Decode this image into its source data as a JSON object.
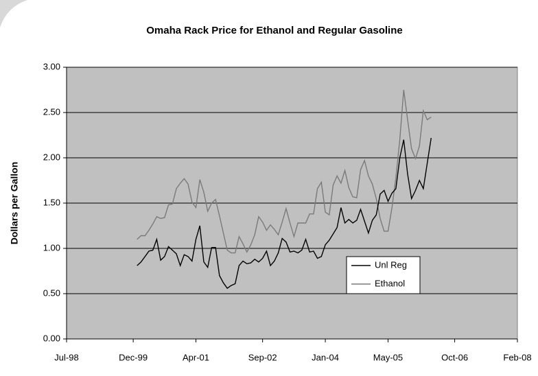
{
  "chart_data": {
    "type": "line",
    "title": "Omaha Rack Price for Ethanol and Regular Gasoline",
    "y_label": "Dollars per Gallon",
    "x": [
      "2000-01",
      "2000-02",
      "2000-03",
      "2000-04",
      "2000-05",
      "2000-06",
      "2000-07",
      "2000-08",
      "2000-09",
      "2000-10",
      "2000-11",
      "2000-12",
      "2001-01",
      "2001-02",
      "2001-03",
      "2001-04",
      "2001-05",
      "2001-06",
      "2001-07",
      "2001-08",
      "2001-09",
      "2001-10",
      "2001-11",
      "2001-12",
      "2002-01",
      "2002-02",
      "2002-03",
      "2002-04",
      "2002-05",
      "2002-06",
      "2002-07",
      "2002-08",
      "2002-09",
      "2002-10",
      "2002-11",
      "2002-12",
      "2003-01",
      "2003-02",
      "2003-03",
      "2003-04",
      "2003-05",
      "2003-06",
      "2003-07",
      "2003-08",
      "2003-09",
      "2003-10",
      "2003-11",
      "2003-12",
      "2004-01",
      "2004-02",
      "2004-03",
      "2004-04",
      "2004-05",
      "2004-06",
      "2004-07",
      "2004-08",
      "2004-09",
      "2004-10",
      "2004-11",
      "2004-12",
      "2005-01",
      "2005-02",
      "2005-03",
      "2005-04",
      "2005-05",
      "2005-06",
      "2005-07",
      "2005-08",
      "2005-09",
      "2005-10",
      "2005-11",
      "2005-12",
      "2006-01",
      "2006-02",
      "2006-03",
      "2006-04"
    ],
    "series": [
      {
        "name": "Unl Reg",
        "color": "#000000",
        "values": [
          0.81,
          0.85,
          0.91,
          0.97,
          0.98,
          1.1,
          0.87,
          0.91,
          1.02,
          0.98,
          0.94,
          0.81,
          0.93,
          0.91,
          0.86,
          1.1,
          1.25,
          0.85,
          0.79,
          1.01,
          1.01,
          0.7,
          0.62,
          0.56,
          0.59,
          0.61,
          0.81,
          0.86,
          0.83,
          0.84,
          0.88,
          0.85,
          0.89,
          0.97,
          0.81,
          0.86,
          0.95,
          1.11,
          1.07,
          0.96,
          0.97,
          0.95,
          0.98,
          1.1,
          0.96,
          0.97,
          0.89,
          0.91,
          1.04,
          1.09,
          1.16,
          1.23,
          1.45,
          1.28,
          1.32,
          1.28,
          1.31,
          1.43,
          1.3,
          1.17,
          1.31,
          1.37,
          1.6,
          1.64,
          1.52,
          1.61,
          1.66,
          2.0,
          2.2,
          1.82,
          1.55,
          1.64,
          1.75,
          1.66,
          1.94,
          2.22
        ]
      },
      {
        "name": "Ethanol",
        "color": "#7a7a7a",
        "values": [
          1.1,
          1.14,
          1.14,
          1.2,
          1.27,
          1.35,
          1.33,
          1.34,
          1.48,
          1.49,
          1.66,
          1.72,
          1.77,
          1.71,
          1.51,
          1.45,
          1.76,
          1.62,
          1.41,
          1.5,
          1.54,
          1.36,
          1.17,
          0.98,
          0.95,
          0.95,
          1.13,
          1.05,
          0.96,
          1.04,
          1.15,
          1.35,
          1.29,
          1.2,
          1.26,
          1.21,
          1.15,
          1.29,
          1.44,
          1.28,
          1.13,
          1.28,
          1.28,
          1.28,
          1.38,
          1.38,
          1.66,
          1.73,
          1.4,
          1.37,
          1.7,
          1.8,
          1.72,
          1.86,
          1.67,
          1.57,
          1.56,
          1.87,
          1.97,
          1.8,
          1.71,
          1.55,
          1.33,
          1.19,
          1.19,
          1.45,
          1.78,
          2.2,
          2.75,
          2.42,
          2.1,
          1.99,
          2.13,
          2.52,
          2.42,
          2.45
        ]
      }
    ],
    "xlim": [
      "1998-07",
      "2008-02"
    ],
    "xticks": [
      {
        "value": "1998-07",
        "label": "Jul-98"
      },
      {
        "value": "1999-12",
        "label": "Dec-99"
      },
      {
        "value": "2001-04",
        "label": "Apr-01"
      },
      {
        "value": "2002-09",
        "label": "Sep-02"
      },
      {
        "value": "2004-01",
        "label": "Jan-04"
      },
      {
        "value": "2005-05",
        "label": "May-05"
      },
      {
        "value": "2006-10",
        "label": "Oct-06"
      },
      {
        "value": "2008-02",
        "label": "Feb-08"
      }
    ],
    "ylim": [
      0,
      3
    ],
    "yticks": [
      {
        "value": 0,
        "label": "0.00"
      },
      {
        "value": 0.5,
        "label": "0.50"
      },
      {
        "value": 1,
        "label": "1.00"
      },
      {
        "value": 1.5,
        "label": "1.50"
      },
      {
        "value": 2,
        "label": "2.00"
      },
      {
        "value": 2.5,
        "label": "2.50"
      },
      {
        "value": 3,
        "label": "3.00"
      }
    ],
    "grid": true,
    "plot_background": "#c0c0c0"
  }
}
